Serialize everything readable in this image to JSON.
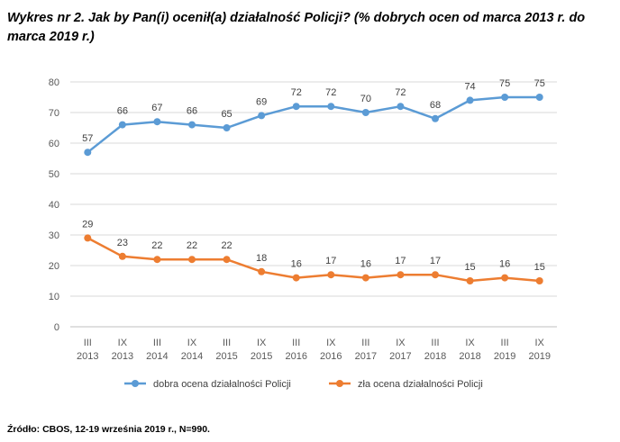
{
  "heading": "Wykres nr 2. Jak by Pan(i) ocenił(a) działalność Policji? (% dobrych ocen od marca 2013 r. do marca 2019 r.)",
  "source": "Źródło: CBOS, 12-19 września 2019 r., N=990.",
  "chart_data": {
    "type": "line",
    "categories": [
      [
        "III",
        "2013"
      ],
      [
        "IX",
        "2013"
      ],
      [
        "III",
        "2014"
      ],
      [
        "IX",
        "2014"
      ],
      [
        "III",
        "2015"
      ],
      [
        "IX",
        "2015"
      ],
      [
        "III",
        "2016"
      ],
      [
        "IX",
        "2016"
      ],
      [
        "III",
        "2017"
      ],
      [
        "IX",
        "2017"
      ],
      [
        "III",
        "2018"
      ],
      [
        "IX",
        "2018"
      ],
      [
        "III",
        "2019"
      ],
      [
        "IX",
        "2019"
      ]
    ],
    "series": [
      {
        "name": "dobra ocena działalności Policji",
        "color": "#5b9bd5",
        "values": [
          57,
          66,
          67,
          66,
          65,
          69,
          72,
          72,
          70,
          72,
          68,
          74,
          75,
          75
        ]
      },
      {
        "name": "zła ocena działalności Policji",
        "color": "#ed7d31",
        "values": [
          29,
          23,
          22,
          22,
          22,
          18,
          16,
          17,
          16,
          17,
          17,
          15,
          16,
          15
        ]
      }
    ],
    "ylim": [
      0,
      80
    ],
    "yticks": [
      0,
      10,
      20,
      30,
      40,
      50,
      60,
      70,
      80
    ],
    "grid": true,
    "legend": "bottom",
    "data_labels": true
  }
}
